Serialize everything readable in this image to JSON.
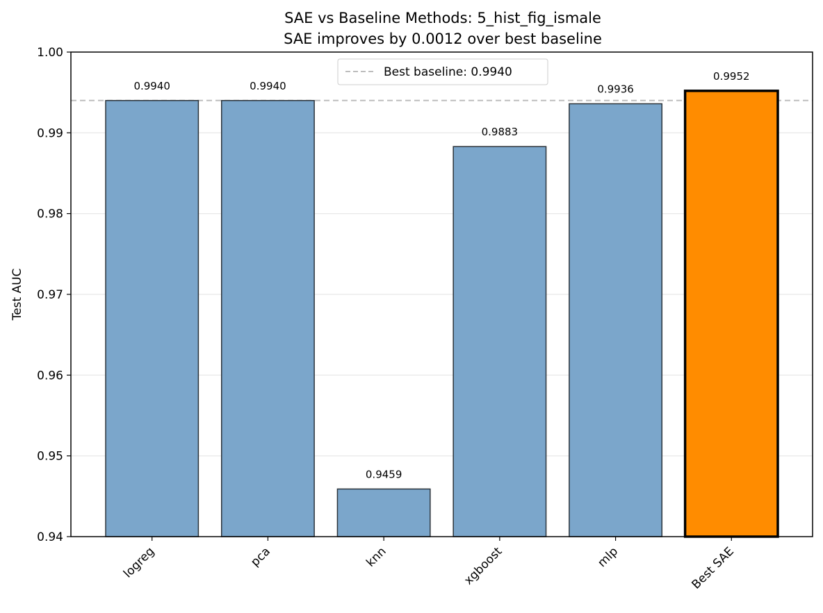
{
  "chart_data": {
    "type": "bar",
    "title": "SAE vs Baseline Methods: 5_hist_fig_ismale",
    "subtitle": "SAE improves by 0.0012 over best baseline",
    "xlabel": "",
    "ylabel": "Test AUC",
    "ylim": [
      0.94,
      1.0
    ],
    "yticks": [
      0.94,
      0.95,
      0.96,
      0.97,
      0.98,
      0.99,
      1.0
    ],
    "ytick_labels": [
      "0.94",
      "0.95",
      "0.96",
      "0.97",
      "0.98",
      "0.99",
      "1.00"
    ],
    "categories": [
      "logreg",
      "pca",
      "knn",
      "xgboost",
      "mlp",
      "Best SAE"
    ],
    "values": [
      0.994,
      0.994,
      0.9459,
      0.9883,
      0.9936,
      0.9952
    ],
    "value_labels": [
      "0.9940",
      "0.9940",
      "0.9459",
      "0.9883",
      "0.9936",
      "0.9952"
    ],
    "highlight_index": 5,
    "reference_line": {
      "value": 0.994,
      "label": "Best baseline: 0.9940",
      "style": "dashed"
    },
    "grid": "y",
    "legend_position": "top-center",
    "colors": {
      "baseline_bar": "#7ba6cb",
      "highlight_bar": "#ff8c00",
      "bar_edge": "#2b333a",
      "highlight_edge": "#000000",
      "reference_line": "#bdbdbd",
      "grid": "#e6e6e6"
    }
  }
}
